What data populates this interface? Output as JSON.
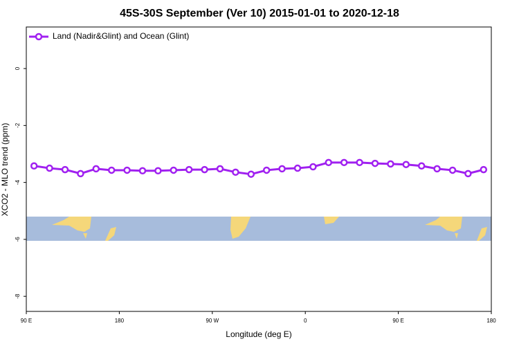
{
  "chart_data": {
    "type": "line",
    "title": "45S-30S September (Ver 10)   2015-01-01 to 2020-12-18",
    "x_label": "Longitude (deg E)",
    "y_label": "XCO2 - MLO trend (ppm)",
    "x": [
      97.5,
      112.5,
      127.5,
      142.5,
      157.5,
      172.5,
      187.5,
      202.5,
      217.5,
      232.5,
      247.5,
      262.5,
      277.5,
      292.5,
      307.5,
      322.5,
      337.5,
      352.5,
      367.5,
      382.5,
      397.5,
      412.5,
      427.5,
      442.5,
      457.5,
      472.5,
      487.5,
      502.5,
      517.5,
      532.5
    ],
    "series": [
      {
        "name": "Land (Nadir&Glint) and Ocean (Glint)",
        "color": "#a020f0",
        "values": [
          -3.42,
          -3.5,
          -3.55,
          -3.69,
          -3.52,
          -3.57,
          -3.57,
          -3.59,
          -3.59,
          -3.57,
          -3.55,
          -3.55,
          -3.52,
          -3.64,
          -3.71,
          -3.57,
          -3.52,
          -3.5,
          -3.45,
          -3.3,
          -3.3,
          -3.3,
          -3.33,
          -3.35,
          -3.37,
          -3.42,
          -3.52,
          -3.57,
          -3.69,
          -3.55
        ]
      }
    ],
    "xlim": [
      90,
      540
    ],
    "xticks": [
      {
        "value": 90,
        "label": "90 E"
      },
      {
        "value": 180,
        "label": "180"
      },
      {
        "value": 270,
        "label": "90 W"
      },
      {
        "value": 360,
        "label": "0"
      },
      {
        "value": 450,
        "label": "90 E"
      },
      {
        "value": 540,
        "label": "180"
      }
    ],
    "ylim": [
      -8.53,
      1.46
    ],
    "yticks": [
      0,
      -2,
      -4,
      -6,
      -8
    ],
    "legend": "upper left"
  }
}
